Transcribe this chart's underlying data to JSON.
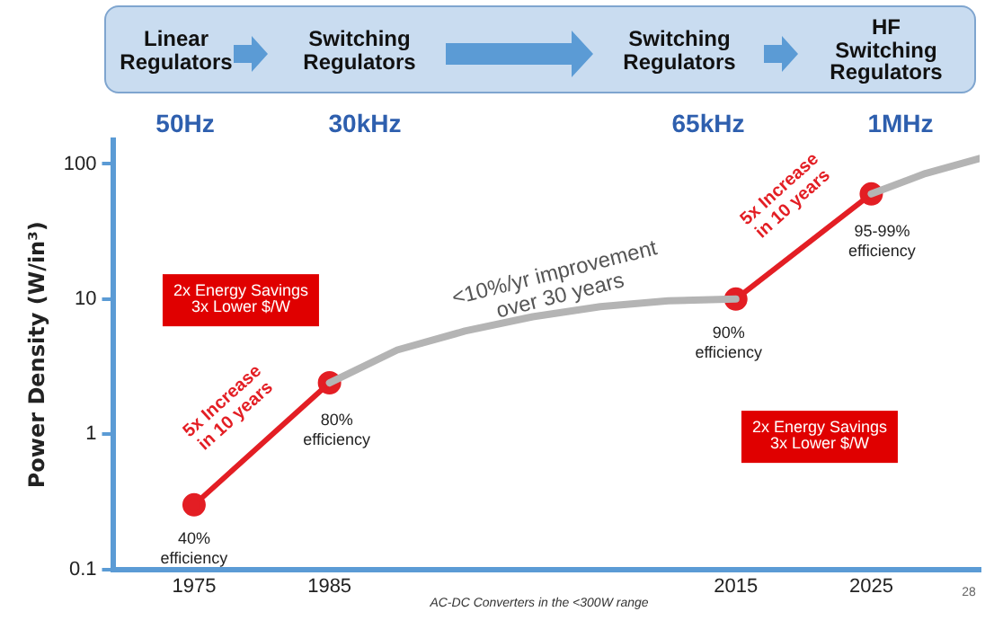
{
  "chart_data": {
    "type": "line",
    "ylabel": "Power Density (W/in³)",
    "log": "y",
    "xlim": [
      1969,
      2033
    ],
    "xticks": [
      1975,
      1985,
      2015,
      2025
    ],
    "ylim": [
      0.1,
      150
    ],
    "yticks": [
      0.1,
      1,
      10,
      100
    ],
    "legend": false,
    "series": [
      {
        "color": "#b4b4b4",
        "marker": "none",
        "x": [
          1985,
          1990,
          1995,
          2000,
          2005,
          2010,
          2015,
          2020,
          2025,
          2029,
          2033
        ],
        "values": [
          2.4,
          4.2,
          5.8,
          7.4,
          8.8,
          9.7,
          10,
          null,
          60,
          85,
          110
        ]
      },
      {
        "color": "#e31e24",
        "marker": "circle",
        "x": [
          1975,
          1985,
          2000,
          2015,
          2025
        ],
        "values": [
          0.3,
          2.4,
          null,
          10,
          60
        ]
      }
    ],
    "annotations": [
      "Linear\nRegulators",
      "Switching\nRegulators",
      "Switching\nRegulators",
      "HF Switching\nRegulators",
      "50Hz",
      "30kHz",
      "65kHz",
      "1MHz",
      "2x Energy Savings\n3x Lower $/W",
      "2x Energy Savings\n3x Lower $/W",
      "<10%/yr improvement\nover 30 years",
      "5x Increase\nin 10 years",
      "5x Increase\nin 10 years",
      "AC-DC Converters in the <300W range",
      "28",
      {
        "text": "40%\nefficiency",
        "x": 1975,
        "y": 0.3
      },
      {
        "text": "80%\nefficiency",
        "x": 1985,
        "y": 2.4
      },
      {
        "text": "90%\nefficiency",
        "x": 2015,
        "y": 10
      },
      {
        "text": "95-99%\nefficiency",
        "x": 2025,
        "y": 60
      }
    ]
  }
}
